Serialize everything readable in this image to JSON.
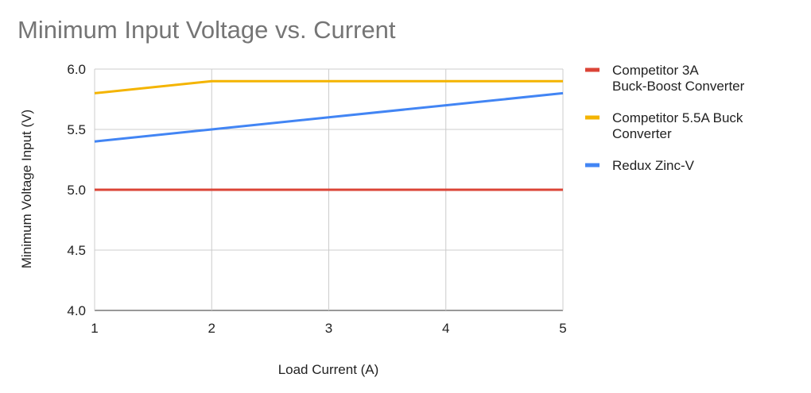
{
  "chart_data": {
    "type": "line",
    "title": "Minimum Input Voltage vs. Current",
    "xlabel": "Load Current (A)",
    "ylabel": "Minimum Voltage Input (V)",
    "x": [
      1,
      2,
      3,
      4,
      5
    ],
    "x_ticks": [
      "1",
      "2",
      "3",
      "4",
      "5"
    ],
    "xlim": [
      1,
      5
    ],
    "ylim": [
      4.0,
      6.0
    ],
    "y_ticks": [
      "4.0",
      "4.5",
      "5.0",
      "5.5",
      "6.0"
    ],
    "grid": true,
    "legend_position": "right",
    "series": [
      {
        "name_lines": [
          "Competitor 3A",
          "Buck-Boost Converter"
        ],
        "color": "#db4437",
        "values": [
          5.0,
          5.0,
          5.0,
          5.0,
          5.0
        ]
      },
      {
        "name_lines": [
          "Competitor 5.5A Buck",
          "Converter"
        ],
        "color": "#f4b400",
        "values": [
          5.8,
          5.9,
          5.9,
          5.9,
          5.9
        ]
      },
      {
        "name_lines": [
          "Redux Zinc-V"
        ],
        "color": "#4285f4",
        "values": [
          5.4,
          5.5,
          5.6,
          5.7,
          5.8
        ]
      }
    ]
  }
}
